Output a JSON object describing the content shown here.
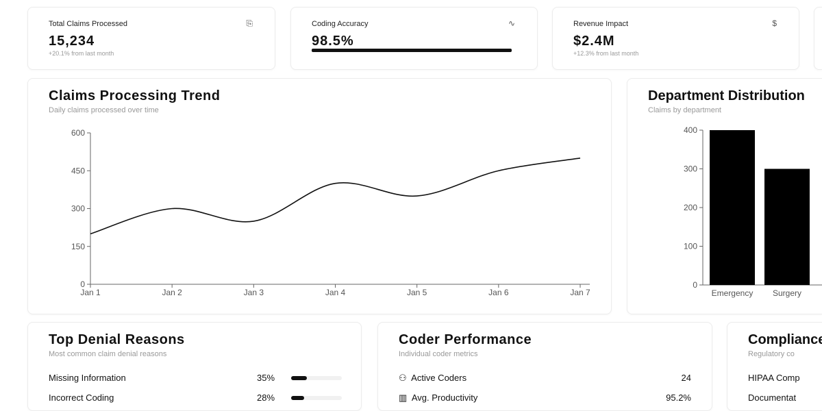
{
  "kpis": [
    {
      "label": "Total Claims Processed",
      "value": "15,234",
      "sub": "+20.1% from last month",
      "icon": "document-icon",
      "glyph": "⎘"
    },
    {
      "label": "Coding Accuracy",
      "value": "98.5%",
      "progress": 98.5,
      "icon": "activity-icon",
      "glyph": "∿"
    },
    {
      "label": "Revenue Impact",
      "value": "$2.4M",
      "sub": "+12.3% from last month",
      "icon": "dollar-icon",
      "glyph": "$"
    }
  ],
  "trend": {
    "title": "Claims Processing Trend",
    "subtitle": "Daily claims processed over time"
  },
  "dept": {
    "title": "Department Distribution",
    "subtitle": "Claims by department"
  },
  "chart_data": [
    {
      "type": "line",
      "categories": [
        "Jan 1",
        "Jan 2",
        "Jan 3",
        "Jan 4",
        "Jan 5",
        "Jan 6",
        "Jan 7"
      ],
      "values": [
        200,
        300,
        250,
        400,
        350,
        450,
        500
      ],
      "ylim": [
        0,
        600
      ],
      "yticks": [
        0,
        150,
        300,
        450,
        600
      ],
      "grid": false
    },
    {
      "type": "bar",
      "categories": [
        "Emergency",
        "Surgery"
      ],
      "values": [
        400,
        300
      ],
      "ylim": [
        0,
        400
      ],
      "yticks": [
        0,
        100,
        200,
        300,
        400
      ],
      "grid": false
    }
  ],
  "denials": {
    "title": "Top Denial Reasons",
    "subtitle": "Most common claim denial reasons",
    "items": [
      {
        "label": "Missing Information",
        "value": "35%",
        "pct": 35
      },
      {
        "label": "Incorrect Coding",
        "value": "28%",
        "pct": 28
      }
    ]
  },
  "coders": {
    "title": "Coder Performance",
    "subtitle": "Individual coder metrics",
    "items": [
      {
        "label": "Active Coders",
        "value": "24",
        "icon": "users-icon",
        "glyph": "⚇"
      },
      {
        "label": "Avg. Productivity",
        "value": "95.2%",
        "icon": "bar-chart-icon",
        "glyph": "▥"
      }
    ]
  },
  "compliance": {
    "title": "Compliance",
    "subtitle": "Regulatory co",
    "items": [
      "HIPAA Comp",
      "Documentat"
    ]
  }
}
